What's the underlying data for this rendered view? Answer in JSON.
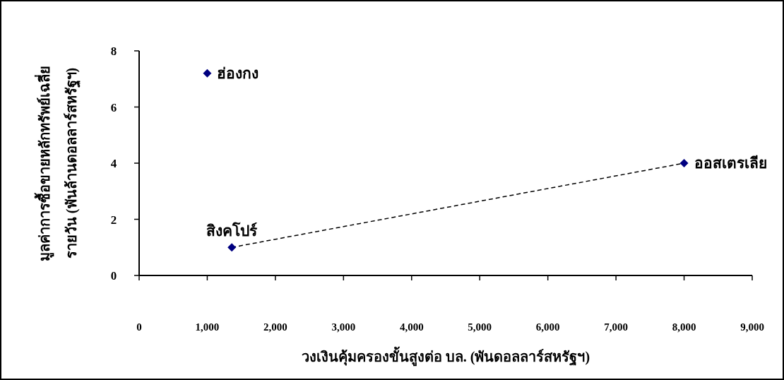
{
  "chart_data": {
    "type": "scatter",
    "xlabel": "วงเงินคุ้มครองขั้นสูงต่อ บล. (พันดอลลาร์สหรัฐฯ)",
    "ylabel": "มูลค่าการซื้อขายหลักทรัพย์เฉลี่ย\nรายวัน (พันล้านดอลลาร์สหรัฐฯ)",
    "xlim": [
      0,
      9000
    ],
    "ylim": [
      0,
      8
    ],
    "xticks": [
      0,
      {
        "value": 1000,
        "label": "1,000"
      },
      {
        "value": 2000,
        "label": "2,000"
      },
      {
        "value": 3000,
        "label": "3,000"
      },
      {
        "value": 4000,
        "label": "4,000"
      },
      {
        "value": 5000,
        "label": "5,000"
      },
      {
        "value": 6000,
        "label": "6,000"
      },
      {
        "value": 7000,
        "label": "7,000"
      },
      {
        "value": 8000,
        "label": "8,000"
      },
      {
        "value": 9000,
        "label": "9,000"
      }
    ],
    "yticks": [
      0,
      2,
      4,
      6,
      8
    ],
    "grid": false,
    "marker": "diamond",
    "series": [
      {
        "color": "#000080",
        "x": [
          1000,
          1360,
          8000
        ],
        "values": [
          7.2,
          1.0,
          4.0
        ]
      },
      {
        "type": "line",
        "color": "#000000",
        "line_style": "dashed",
        "marker": "none",
        "x": [
          1360,
          8000
        ],
        "values": [
          1.0,
          4.0
        ]
      }
    ],
    "annotations": [
      {
        "text": "ฮ่องกง",
        "x": 1000,
        "y": 7.2
      },
      {
        "text": "สิงคโปร์",
        "x": 1360,
        "y": 1.0
      },
      {
        "text": "ออสเตรเลีย",
        "x": 8000,
        "y": 4.0
      }
    ]
  }
}
